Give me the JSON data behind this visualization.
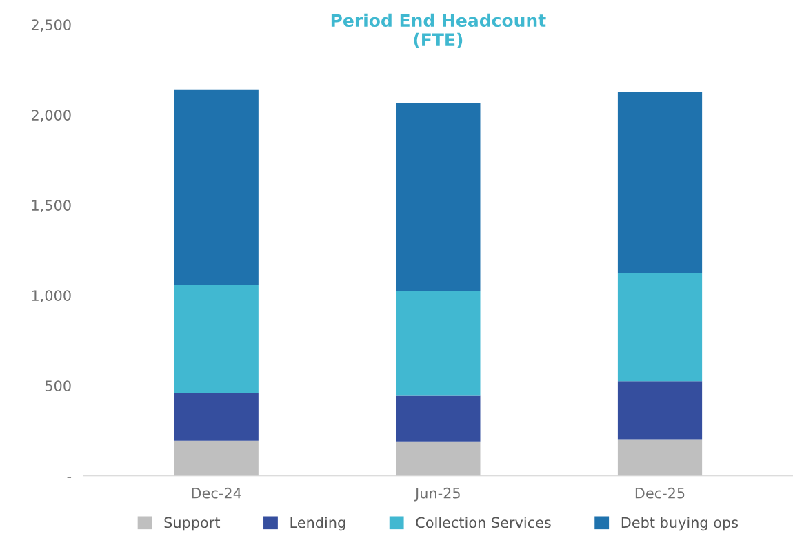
{
  "chart_data": {
    "type": "bar",
    "title": "Period End Headcount\n(FTE)",
    "categories": [
      "Dec-24",
      "Jun-25",
      "Dec-25"
    ],
    "stacked": true,
    "series": [
      {
        "name": "Support",
        "color": "#bfbfbf",
        "values": [
          195,
          191,
          203
        ]
      },
      {
        "name": "Lending",
        "color": "#354e9e",
        "values": [
          265,
          253,
          322
        ]
      },
      {
        "name": "Collection Services",
        "color": "#41b8d1",
        "values": [
          597,
          579,
          597
        ]
      },
      {
        "name": "Debt buying ops",
        "color": "#1f72ad",
        "values": [
          1084,
          1041,
          1003
        ]
      }
    ],
    "ylim": [
      0,
      2500
    ],
    "yticks": [
      {
        "value": 0,
        "label": "-"
      },
      {
        "value": 500,
        "label": "500"
      },
      {
        "value": 1000,
        "label": "1,000"
      },
      {
        "value": 1500,
        "label": "1,500"
      },
      {
        "value": 2000,
        "label": "2,000"
      },
      {
        "value": 2500,
        "label": "2,500"
      }
    ],
    "grid": false,
    "legend": "bottom"
  }
}
